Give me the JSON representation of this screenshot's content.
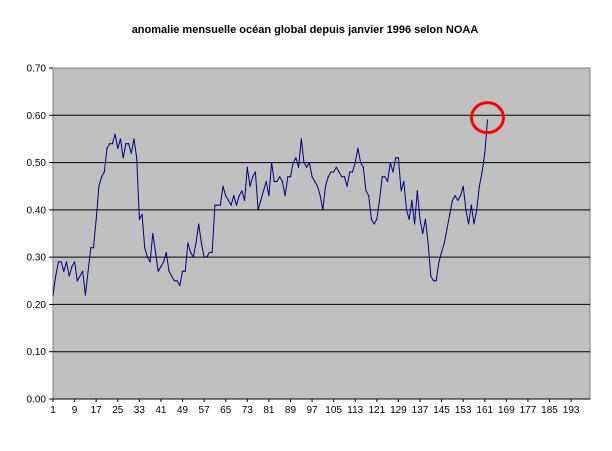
{
  "chart_data": {
    "type": "line",
    "title": "anomalie mensuelle océan global depuis janvier 1996 selon NOAA",
    "xlabel": "",
    "ylabel": "",
    "ylim": [
      0,
      0.7
    ],
    "yticks": [
      "0.00",
      "0.10",
      "0.20",
      "0.30",
      "0.40",
      "0.50",
      "0.60",
      "0.70"
    ],
    "xlim": [
      1,
      200
    ],
    "xticks": [
      "1",
      "9",
      "17",
      "25",
      "33",
      "41",
      "49",
      "57",
      "65",
      "73",
      "81",
      "89",
      "97",
      "105",
      "113",
      "121",
      "129",
      "137",
      "145",
      "153",
      "161",
      "169",
      "177",
      "185",
      "193"
    ],
    "grid": true,
    "plot_background": "#c0c0c0",
    "line_color": "#000080",
    "annotation": {
      "type": "circle",
      "color": "#ff0000",
      "x": 162,
      "y": 0.595
    },
    "series": [
      {
        "x": [
          1,
          2,
          3,
          4,
          5,
          6,
          7,
          8,
          9,
          10,
          11,
          12,
          13,
          14,
          15,
          16,
          17,
          18,
          19,
          20,
          21,
          22,
          23,
          24,
          25,
          26,
          27,
          28,
          29,
          30,
          31,
          32,
          33,
          34,
          35,
          36,
          37,
          38,
          39,
          40,
          41,
          42,
          43,
          44,
          45,
          46,
          47,
          48,
          49,
          50,
          51,
          52,
          53,
          54,
          55,
          56,
          57,
          58,
          59,
          60,
          61,
          62,
          63,
          64,
          65,
          66,
          67,
          68,
          69,
          70,
          71,
          72,
          73,
          74,
          75,
          76,
          77,
          78,
          79,
          80,
          81,
          82,
          83,
          84,
          85,
          86,
          87,
          88,
          89,
          90,
          91,
          92,
          93,
          94,
          95,
          96,
          97,
          98,
          99,
          100,
          101,
          102,
          103,
          104,
          105,
          106,
          107,
          108,
          109,
          110,
          111,
          112,
          113,
          114,
          115,
          116,
          117,
          118,
          119,
          120,
          121,
          122,
          123,
          124,
          125,
          126,
          127,
          128,
          129,
          130,
          131,
          132,
          133,
          134,
          135,
          136,
          137,
          138,
          139,
          140,
          141,
          142,
          143,
          144,
          145,
          146,
          147,
          148,
          149,
          150,
          151,
          152,
          153,
          154,
          155,
          156,
          157,
          158,
          159,
          160,
          161,
          162
        ],
        "values": [
          0.22,
          0.26,
          0.29,
          0.29,
          0.27,
          0.29,
          0.26,
          0.28,
          0.29,
          0.25,
          0.26,
          0.27,
          0.22,
          0.27,
          0.32,
          0.32,
          0.38,
          0.45,
          0.47,
          0.48,
          0.53,
          0.54,
          0.54,
          0.56,
          0.53,
          0.55,
          0.51,
          0.54,
          0.54,
          0.52,
          0.55,
          0.51,
          0.38,
          0.39,
          0.32,
          0.3,
          0.29,
          0.35,
          0.31,
          0.27,
          0.28,
          0.29,
          0.31,
          0.27,
          0.26,
          0.25,
          0.25,
          0.24,
          0.27,
          0.27,
          0.33,
          0.31,
          0.3,
          0.33,
          0.37,
          0.33,
          0.3,
          0.3,
          0.31,
          0.31,
          0.41,
          0.41,
          0.41,
          0.45,
          0.43,
          0.42,
          0.41,
          0.43,
          0.41,
          0.43,
          0.44,
          0.42,
          0.49,
          0.45,
          0.47,
          0.48,
          0.4,
          0.42,
          0.44,
          0.46,
          0.43,
          0.5,
          0.46,
          0.46,
          0.47,
          0.46,
          0.43,
          0.47,
          0.47,
          0.5,
          0.51,
          0.49,
          0.55,
          0.5,
          0.49,
          0.5,
          0.47,
          0.46,
          0.45,
          0.43,
          0.4,
          0.45,
          0.47,
          0.48,
          0.48,
          0.49,
          0.48,
          0.47,
          0.47,
          0.45,
          0.48,
          0.48,
          0.5,
          0.53,
          0.5,
          0.49,
          0.44,
          0.43,
          0.38,
          0.37,
          0.38,
          0.42,
          0.47,
          0.47,
          0.46,
          0.5,
          0.48,
          0.51,
          0.51,
          0.44,
          0.46,
          0.4,
          0.38,
          0.42,
          0.37,
          0.44,
          0.38,
          0.35,
          0.38,
          0.33,
          0.26,
          0.25,
          0.25,
          0.29,
          0.31,
          0.33,
          0.36,
          0.39,
          0.42,
          0.43,
          0.42,
          0.43,
          0.45,
          0.4,
          0.37,
          0.41,
          0.37,
          0.4,
          0.45,
          0.48,
          0.52,
          0.59
        ]
      }
    ]
  }
}
